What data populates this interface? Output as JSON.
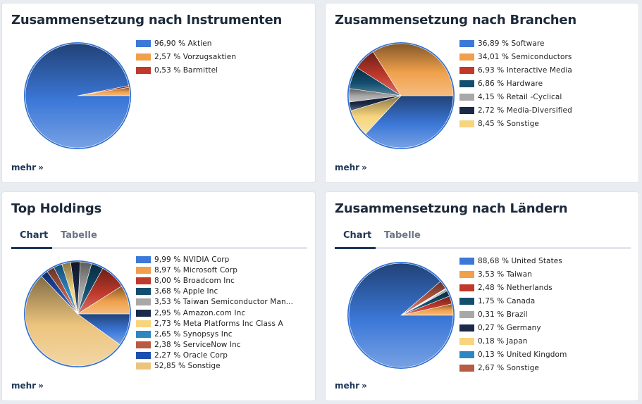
{
  "more_label": "mehr",
  "more_icon": "»",
  "charts": [
    {
      "title": "Zusammensetzung nach Instrumenten",
      "tabs": null,
      "chart_data": {
        "type": "pie",
        "title": "Zusammensetzung nach Instrumenten",
        "categories": [
          "Aktien",
          "Vorzugsaktien",
          "Barmittel"
        ],
        "values": [
          96.9,
          2.57,
          0.53
        ],
        "labels": [
          "96,90 % Aktien",
          "2,57 % Vorzugsaktien",
          "0,53 % Barmittel"
        ],
        "colors": [
          "#3c78d8",
          "#f0a04b",
          "#c0392b"
        ]
      }
    },
    {
      "title": "Zusammensetzung nach Branchen",
      "tabs": null,
      "chart_data": {
        "type": "pie",
        "title": "Zusammensetzung nach Branchen",
        "categories": [
          "Software",
          "Semiconductors",
          "Interactive Media",
          "Hardware",
          "Retail -Cyclical",
          "Media-Diversified",
          "Sonstige"
        ],
        "values": [
          36.89,
          34.01,
          6.93,
          6.86,
          4.15,
          2.72,
          8.45
        ],
        "labels": [
          "36,89 % Software",
          "34,01 % Semiconductors",
          "6,93 % Interactive Media",
          "6,86 % Hardware",
          "4,15 % Retail -Cyclical",
          "2,72 % Media-Diversified",
          "8,45 % Sonstige"
        ],
        "colors": [
          "#3c78d8",
          "#f0a04b",
          "#c0392b",
          "#134e6f",
          "#a8a8a8",
          "#1b2a48",
          "#f7d57e"
        ]
      }
    },
    {
      "title": "Top Holdings",
      "tabs": [
        "Chart",
        "Tabelle"
      ],
      "chart_data": {
        "type": "pie",
        "title": "Top Holdings",
        "categories": [
          "NVIDIA Corp",
          "Microsoft Corp",
          "Broadcom Inc",
          "Apple Inc",
          "Taiwan Semiconductor Man...",
          "Amazon.com Inc",
          "Meta Platforms Inc Class A",
          "Synopsys Inc",
          "ServiceNow Inc",
          "Oracle Corp",
          "Sonstige"
        ],
        "values": [
          9.99,
          8.97,
          8.0,
          3.68,
          3.53,
          2.95,
          2.73,
          2.65,
          2.38,
          2.27,
          52.85
        ],
        "labels": [
          "9,99 % NVIDIA Corp",
          "8,97 % Microsoft Corp",
          "8,00 % Broadcom Inc",
          "3,68 % Apple Inc",
          "3,53 % Taiwan Semiconductor Man...",
          "2,95 % Amazon.com Inc",
          "2,73 % Meta Platforms Inc Class A",
          "2,65 % Synopsys Inc",
          "2,38 % ServiceNow Inc",
          "2,27 % Oracle Corp",
          "52,85 % Sonstige"
        ],
        "colors": [
          "#3c78d8",
          "#f0a04b",
          "#c0392b",
          "#134e6f",
          "#a8a8a8",
          "#1b2a48",
          "#f7d57e",
          "#2d86c4",
          "#b85a44",
          "#1d4fae",
          "#ecc47e"
        ]
      }
    },
    {
      "title": "Zusammensetzung nach Ländern",
      "tabs": [
        "Chart",
        "Tabelle"
      ],
      "chart_data": {
        "type": "pie",
        "title": "Zusammensetzung nach Ländern",
        "categories": [
          "United States",
          "Taiwan",
          "Netherlands",
          "Canada",
          "Brazil",
          "Germany",
          "Japan",
          "United Kingdom",
          "Sonstige"
        ],
        "values": [
          88.68,
          3.53,
          2.48,
          1.75,
          0.31,
          0.27,
          0.18,
          0.13,
          2.67
        ],
        "labels": [
          "88,68 % United States",
          "3,53 % Taiwan",
          "2,48 % Netherlands",
          "1,75 % Canada",
          "0,31 % Brazil",
          "0,27 % Germany",
          "0,18 % Japan",
          "0,13 % United Kingdom",
          "2,67 % Sonstige"
        ],
        "colors": [
          "#3c78d8",
          "#f0a04b",
          "#c0392b",
          "#134e6f",
          "#a8a8a8",
          "#1b2a48",
          "#f7d57e",
          "#2d86c4",
          "#b85a44"
        ]
      }
    }
  ]
}
